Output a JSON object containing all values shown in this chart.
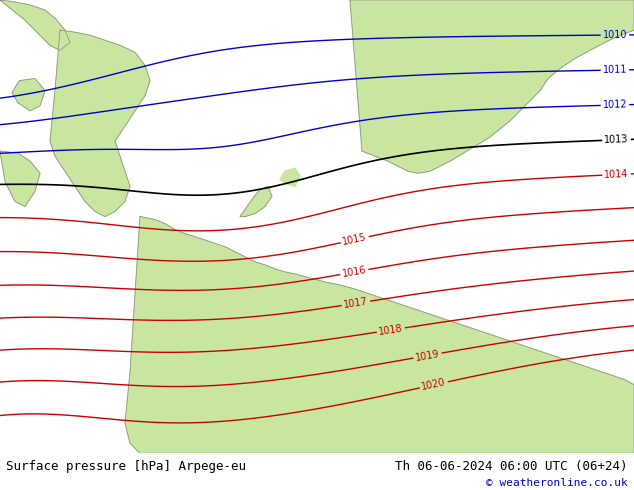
{
  "title_left": "Surface pressure [hPa] Arpege-eu",
  "title_right": "Th 06-06-2024 06:00 UTC (06+24)",
  "copyright": "© weatheronline.co.uk",
  "land_color": "#c8e6a0",
  "sea_color": "#dce4ec",
  "bottom_bar_color": "#ffffff",
  "text_color": "#000000",
  "title_font_size": 9,
  "copyright_color": "#0000cc",
  "isobar_red_color": "#cc0000",
  "isobar_blue_color": "#0000cc",
  "isobar_black_color": "#000000",
  "figwidth": 6.34,
  "figheight": 4.9,
  "dpi": 100
}
